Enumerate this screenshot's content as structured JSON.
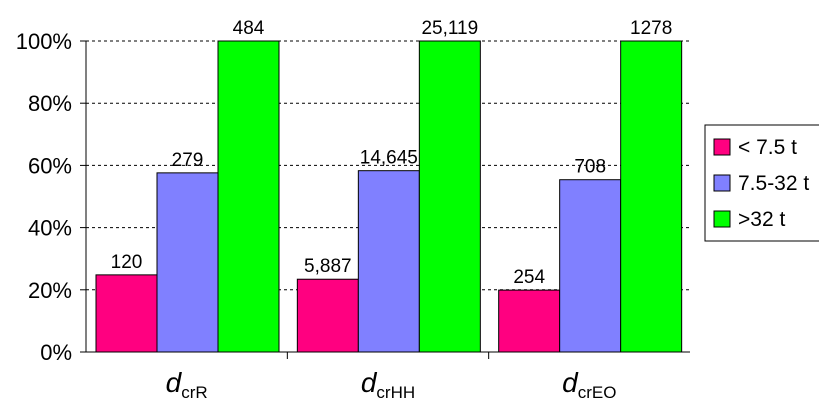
{
  "chart_data": {
    "type": "bar",
    "title": "",
    "xlabel": "",
    "ylabel": "",
    "ylim": [
      0,
      100
    ],
    "y_ticks": [
      "0%",
      "20%",
      "40%",
      "60%",
      "80%",
      "100%"
    ],
    "grid": "horizontal dashed",
    "legend_position": "right",
    "categories": [
      {
        "main": "d",
        "sub": "crR"
      },
      {
        "main": "d",
        "sub": "crHH"
      },
      {
        "main": "d",
        "sub": "crEQ"
      }
    ],
    "series": [
      {
        "name": "< 7.5 t",
        "color": "#ff0080",
        "values": [
          24.8,
          23.4,
          19.9
        ],
        "labels": [
          "120",
          "5,887",
          "254"
        ]
      },
      {
        "name": "7.5-32 t",
        "color": "#8080ff",
        "values": [
          57.6,
          58.3,
          55.4
        ],
        "labels": [
          "279",
          "14,645",
          "708"
        ]
      },
      {
        "name": ">32 t",
        "color": "#00ff00",
        "values": [
          100,
          100,
          100
        ],
        "labels": [
          "484",
          "25,119",
          "1278"
        ]
      }
    ]
  }
}
